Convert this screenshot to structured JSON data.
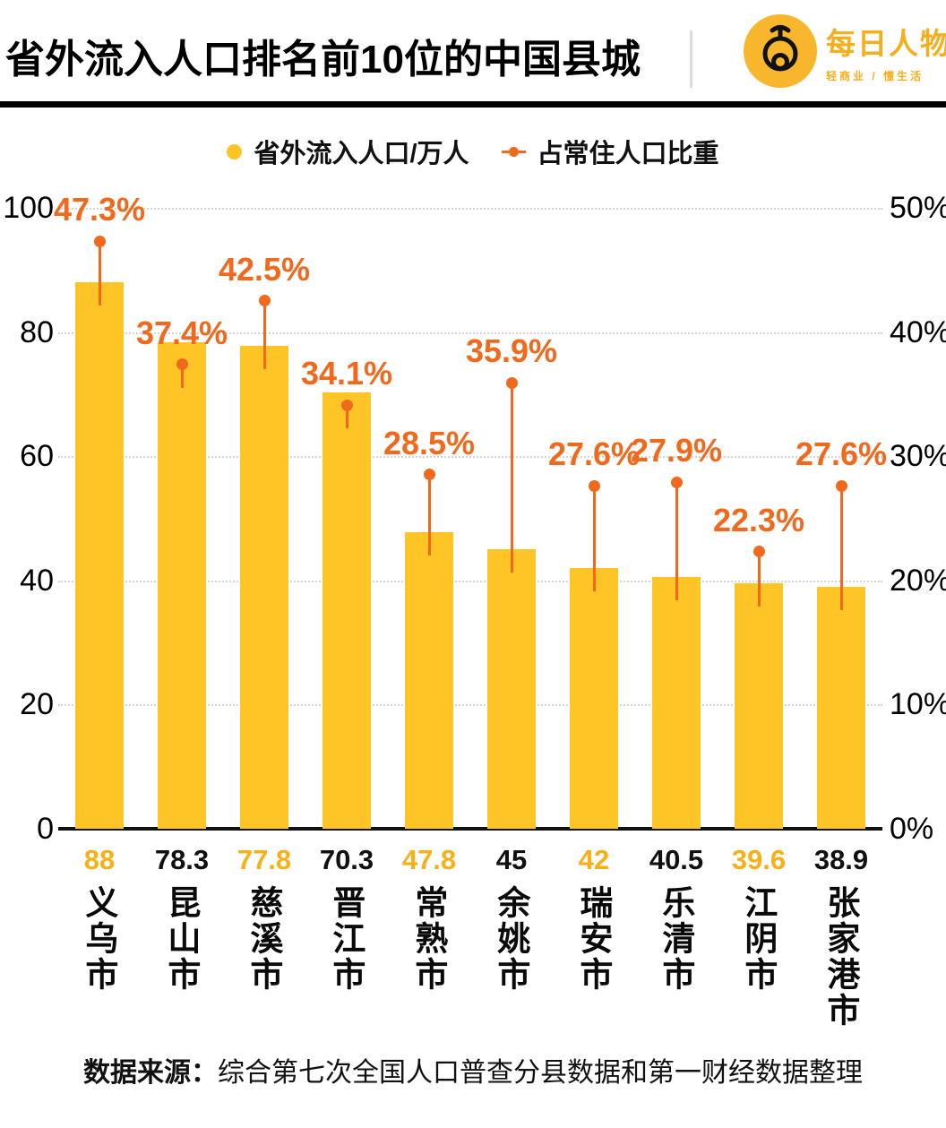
{
  "header": {
    "title": "省外流入人口排名前10位的中国县城",
    "logo": {
      "name": "每日人物",
      "tagline": "轻商业 / 懂生活"
    }
  },
  "legend": {
    "bar_label": "省外流入人口/万人",
    "line_label": "占常住人口比重"
  },
  "chart_data": {
    "type": "bar",
    "title": "省外流入人口排名前10位的中国县城",
    "categories": [
      "义乌市",
      "昆山市",
      "慈溪市",
      "晋江市",
      "常熟市",
      "余姚市",
      "瑞安市",
      "乐清市",
      "江阴市",
      "张家港市"
    ],
    "series": [
      {
        "name": "省外流入人口/万人",
        "axis": "left",
        "color": "#FFC527",
        "values": [
          88,
          78.3,
          77.8,
          70.3,
          47.8,
          45,
          42,
          40.5,
          39.6,
          38.9
        ]
      },
      {
        "name": "占常住人口比重",
        "axis": "right",
        "color": "#F0691C",
        "values": [
          47.3,
          37.4,
          42.5,
          34.1,
          28.5,
          35.9,
          27.6,
          27.9,
          22.3,
          27.6
        ],
        "labels": [
          "47.3%",
          "37.4%",
          "42.5%",
          "34.1%",
          "28.5%",
          "35.9%",
          "27.6%",
          "27.9%",
          "22.3%",
          "27.6%"
        ]
      }
    ],
    "value_labels": [
      "88",
      "78.3",
      "77.8",
      "70.3",
      "47.8",
      "45",
      "42",
      "40.5",
      "39.6",
      "38.9"
    ],
    "left_axis": {
      "ticks": [
        "100",
        "80",
        "60",
        "40",
        "20",
        "0"
      ],
      "min": 0,
      "max": 100
    },
    "right_axis": {
      "ticks": [
        "50%",
        "40%",
        "30%",
        "20%",
        "10%",
        "0%"
      ],
      "min": 0,
      "max": 50
    },
    "grid": "dotted horizontal gridlines, solid black baseline",
    "legend_position": "top-center"
  },
  "footer": {
    "source_label": "数据来源：",
    "source_text": "综合第七次全国人口普查分县数据和第一财经数据整理"
  },
  "colors": {
    "bar": "#FFC527",
    "accent_orange": "#F0691C",
    "logo_gold": "#F5AF1C",
    "value_label_alt": "#F9B017",
    "text": "#111111"
  }
}
